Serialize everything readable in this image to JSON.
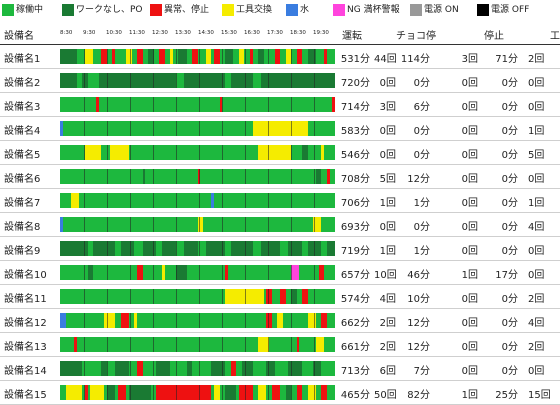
{
  "legend": [
    {
      "label": "稼働中",
      "color": "#1db83e"
    },
    {
      "label": "ワークなし、PO",
      "color": "#1a7a33"
    },
    {
      "label": "異常、停止",
      "color": "#ee1111"
    },
    {
      "label": "工具交換",
      "color": "#f5ec00"
    },
    {
      "label": "水",
      "color": "#3a7de0"
    },
    {
      "label": "NG 満杯警報",
      "color": "#ff44dd"
    },
    {
      "label": "電源 ON",
      "color": "#999999"
    },
    {
      "label": "電源 OFF",
      "color": "#000000"
    }
  ],
  "header": {
    "equipment": "設備名",
    "running": "運転",
    "choko": "チョコ停",
    "stop": "停止",
    "tool": "工"
  },
  "time_ticks": [
    "8:30",
    "9:30",
    "10:30",
    "11:30",
    "12:30",
    "13:30",
    "14:30",
    "15:30",
    "16:30",
    "17:30",
    "18:30",
    "19:30"
  ],
  "machines": [
    {
      "name": "設備名1",
      "run": "531分",
      "choko_count": "44回",
      "choko_time": "114分",
      "stop_count": "3回",
      "stop_time": "71分",
      "tool_count": "2回"
    },
    {
      "name": "設備名2",
      "run": "720分",
      "choko_count": "0回",
      "choko_time": "0分",
      "stop_count": "0回",
      "stop_time": "0分",
      "tool_count": "0回"
    },
    {
      "name": "設備名3",
      "run": "714分",
      "choko_count": "3回",
      "choko_time": "6分",
      "stop_count": "0回",
      "stop_time": "0分",
      "tool_count": "0回"
    },
    {
      "name": "設備名4",
      "run": "583分",
      "choko_count": "0回",
      "choko_time": "0分",
      "stop_count": "0回",
      "stop_time": "0分",
      "tool_count": "1回"
    },
    {
      "name": "設備名5",
      "run": "546分",
      "choko_count": "0回",
      "choko_time": "0分",
      "stop_count": "0回",
      "stop_time": "0分",
      "tool_count": "5回"
    },
    {
      "name": "設備名6",
      "run": "708分",
      "choko_count": "5回",
      "choko_time": "12分",
      "stop_count": "0回",
      "stop_time": "0分",
      "tool_count": "0回"
    },
    {
      "name": "設備名7",
      "run": "706分",
      "choko_count": "1回",
      "choko_time": "1分",
      "stop_count": "0回",
      "stop_time": "0分",
      "tool_count": "1回"
    },
    {
      "name": "設備名8",
      "run": "693分",
      "choko_count": "0回",
      "choko_time": "0分",
      "stop_count": "0回",
      "stop_time": "0分",
      "tool_count": "4回"
    },
    {
      "name": "設備名9",
      "run": "719分",
      "choko_count": "1回",
      "choko_time": "1分",
      "stop_count": "0回",
      "stop_time": "0分",
      "tool_count": "0回"
    },
    {
      "name": "設備名10",
      "run": "657分",
      "choko_count": "10回",
      "choko_time": "46分",
      "stop_count": "1回",
      "stop_time": "17分",
      "tool_count": "0回"
    },
    {
      "name": "設備名11",
      "run": "574分",
      "choko_count": "4回",
      "choko_time": "10分",
      "stop_count": "0回",
      "stop_time": "0分",
      "tool_count": "2回"
    },
    {
      "name": "設備名12",
      "run": "662分",
      "choko_count": "2回",
      "choko_time": "12分",
      "stop_count": "0回",
      "stop_time": "0分",
      "tool_count": "4回"
    },
    {
      "name": "設備名13",
      "run": "661分",
      "choko_count": "2回",
      "choko_time": "12分",
      "stop_count": "0回",
      "stop_time": "0分",
      "tool_count": "2回"
    },
    {
      "name": "設備名14",
      "run": "713分",
      "choko_count": "6回",
      "choko_time": "7分",
      "stop_count": "0回",
      "stop_time": "0分",
      "tool_count": "0回"
    },
    {
      "name": "設備名15",
      "run": "465分",
      "choko_count": "50回",
      "choko_time": "82分",
      "stop_count": "1回",
      "stop_time": "25分",
      "tool_count": "15回"
    }
  ],
  "timeline": [
    [
      {
        "s": 0.0,
        "e": 0.06,
        "c": 1
      },
      {
        "s": 0.09,
        "e": 0.12,
        "c": 3
      },
      {
        "s": 0.15,
        "e": 0.17,
        "c": 2
      },
      {
        "s": 0.19,
        "e": 0.2,
        "c": 2
      },
      {
        "s": 0.24,
        "e": 0.26,
        "c": 3
      },
      {
        "s": 0.28,
        "e": 0.3,
        "c": 2
      },
      {
        "s": 0.32,
        "e": 0.34,
        "c": 1
      },
      {
        "s": 0.36,
        "e": 0.38,
        "c": 2
      },
      {
        "s": 0.4,
        "e": 0.41,
        "c": 3
      },
      {
        "s": 0.43,
        "e": 0.46,
        "c": 1
      },
      {
        "s": 0.48,
        "e": 0.5,
        "c": 2
      },
      {
        "s": 0.53,
        "e": 0.55,
        "c": 3
      },
      {
        "s": 0.56,
        "e": 0.58,
        "c": 2
      },
      {
        "s": 0.6,
        "e": 0.63,
        "c": 1
      },
      {
        "s": 0.65,
        "e": 0.67,
        "c": 3
      },
      {
        "s": 0.69,
        "e": 0.7,
        "c": 2
      },
      {
        "s": 0.72,
        "e": 0.74,
        "c": 1
      },
      {
        "s": 0.78,
        "e": 0.8,
        "c": 2
      },
      {
        "s": 0.82,
        "e": 0.84,
        "c": 3
      },
      {
        "s": 0.86,
        "e": 0.88,
        "c": 2
      },
      {
        "s": 0.9,
        "e": 0.93,
        "c": 1
      },
      {
        "s": 0.96,
        "e": 0.97,
        "c": 2
      }
    ],
    [
      {
        "s": 0.0,
        "e": 0.06,
        "c": 1
      },
      {
        "s": 0.08,
        "e": 0.1,
        "c": 1
      },
      {
        "s": 0.14,
        "e": 0.42,
        "c": 1
      },
      {
        "s": 0.45,
        "e": 0.6,
        "c": 1
      },
      {
        "s": 0.62,
        "e": 0.7,
        "c": 1
      },
      {
        "s": 0.73,
        "e": 1.0,
        "c": 1
      }
    ],
    [
      {
        "s": 0.13,
        "e": 0.14,
        "c": 2
      },
      {
        "s": 0.58,
        "e": 0.59,
        "c": 2
      },
      {
        "s": 0.99,
        "e": 1.0,
        "c": 2
      }
    ],
    [
      {
        "s": 0.0,
        "e": 0.01,
        "c": 4
      },
      {
        "s": 0.7,
        "e": 0.9,
        "c": 3
      }
    ],
    [
      {
        "s": 0.09,
        "e": 0.15,
        "c": 3
      },
      {
        "s": 0.18,
        "e": 0.25,
        "c": 3
      },
      {
        "s": 0.72,
        "e": 0.84,
        "c": 3
      },
      {
        "s": 0.88,
        "e": 0.9,
        "c": 1
      },
      {
        "s": 0.95,
        "e": 0.96,
        "c": 3
      }
    ],
    [
      {
        "s": 0.3,
        "e": 0.31,
        "c": 1
      },
      {
        "s": 0.5,
        "e": 0.51,
        "c": 2
      },
      {
        "s": 0.93,
        "e": 0.95,
        "c": 1
      },
      {
        "s": 0.97,
        "e": 0.98,
        "c": 2
      }
    ],
    [
      {
        "s": 0.04,
        "e": 0.07,
        "c": 3
      },
      {
        "s": 0.55,
        "e": 0.56,
        "c": 4
      }
    ],
    [
      {
        "s": 0.0,
        "e": 0.01,
        "c": 4
      },
      {
        "s": 0.5,
        "e": 0.52,
        "c": 3
      },
      {
        "s": 0.92,
        "e": 0.95,
        "c": 3
      }
    ],
    [
      {
        "s": 0.0,
        "e": 0.1,
        "c": 1
      },
      {
        "s": 0.12,
        "e": 0.2,
        "c": 1
      },
      {
        "s": 0.22,
        "e": 0.27,
        "c": 1
      },
      {
        "s": 0.3,
        "e": 0.35,
        "c": 1
      },
      {
        "s": 0.37,
        "e": 0.42,
        "c": 1
      },
      {
        "s": 0.45,
        "e": 0.5,
        "c": 1
      },
      {
        "s": 0.53,
        "e": 0.6,
        "c": 1
      },
      {
        "s": 0.62,
        "e": 0.7,
        "c": 1
      },
      {
        "s": 0.73,
        "e": 0.8,
        "c": 1
      },
      {
        "s": 0.83,
        "e": 0.88,
        "c": 1
      },
      {
        "s": 0.9,
        "e": 0.95,
        "c": 1
      },
      {
        "s": 0.97,
        "e": 1.0,
        "c": 1
      }
    ],
    [
      {
        "s": 0.1,
        "e": 0.12,
        "c": 1
      },
      {
        "s": 0.28,
        "e": 0.3,
        "c": 2
      },
      {
        "s": 0.37,
        "e": 0.38,
        "c": 3
      },
      {
        "s": 0.42,
        "e": 0.46,
        "c": 1
      },
      {
        "s": 0.6,
        "e": 0.61,
        "c": 2
      },
      {
        "s": 0.84,
        "e": 0.87,
        "c": 5
      },
      {
        "s": 0.94,
        "e": 0.96,
        "c": 2
      }
    ],
    [
      {
        "s": 0.6,
        "e": 0.74,
        "c": 3
      },
      {
        "s": 0.75,
        "e": 0.77,
        "c": 2
      },
      {
        "s": 0.8,
        "e": 0.82,
        "c": 2
      },
      {
        "s": 0.84,
        "e": 0.86,
        "c": 1
      },
      {
        "s": 0.88,
        "e": 0.9,
        "c": 2
      }
    ],
    [
      {
        "s": 0.0,
        "e": 0.02,
        "c": 4
      },
      {
        "s": 0.16,
        "e": 0.2,
        "c": 3
      },
      {
        "s": 0.22,
        "e": 0.25,
        "c": 2
      },
      {
        "s": 0.27,
        "e": 0.28,
        "c": 3
      },
      {
        "s": 0.75,
        "e": 0.77,
        "c": 2
      },
      {
        "s": 0.79,
        "e": 0.81,
        "c": 3
      },
      {
        "s": 0.9,
        "e": 0.93,
        "c": 3
      },
      {
        "s": 0.95,
        "e": 0.97,
        "c": 2
      }
    ],
    [
      {
        "s": 0.05,
        "e": 0.06,
        "c": 2
      },
      {
        "s": 0.72,
        "e": 0.76,
        "c": 3
      },
      {
        "s": 0.86,
        "e": 0.87,
        "c": 2
      },
      {
        "s": 0.93,
        "e": 0.96,
        "c": 3
      }
    ],
    [
      {
        "s": 0.0,
        "e": 0.08,
        "c": 1
      },
      {
        "s": 0.15,
        "e": 0.17,
        "c": 1
      },
      {
        "s": 0.2,
        "e": 0.25,
        "c": 1
      },
      {
        "s": 0.28,
        "e": 0.3,
        "c": 2
      },
      {
        "s": 0.35,
        "e": 0.4,
        "c": 1
      },
      {
        "s": 0.46,
        "e": 0.48,
        "c": 1
      },
      {
        "s": 0.55,
        "e": 0.6,
        "c": 1
      },
      {
        "s": 0.62,
        "e": 0.64,
        "c": 2
      },
      {
        "s": 0.66,
        "e": 0.7,
        "c": 1
      },
      {
        "s": 0.75,
        "e": 0.78,
        "c": 1
      },
      {
        "s": 0.83,
        "e": 0.88,
        "c": 1
      },
      {
        "s": 0.92,
        "e": 0.95,
        "c": 1
      }
    ],
    [
      {
        "s": 0.02,
        "e": 0.08,
        "c": 3
      },
      {
        "s": 0.09,
        "e": 0.1,
        "c": 2
      },
      {
        "s": 0.11,
        "e": 0.16,
        "c": 3
      },
      {
        "s": 0.17,
        "e": 0.2,
        "c": 1
      },
      {
        "s": 0.21,
        "e": 0.24,
        "c": 2
      },
      {
        "s": 0.25,
        "e": 0.33,
        "c": 1
      },
      {
        "s": 0.35,
        "e": 0.55,
        "c": 2
      },
      {
        "s": 0.56,
        "e": 0.58,
        "c": 3
      },
      {
        "s": 0.6,
        "e": 0.64,
        "c": 1
      },
      {
        "s": 0.65,
        "e": 0.7,
        "c": 2
      },
      {
        "s": 0.72,
        "e": 0.75,
        "c": 3
      },
      {
        "s": 0.77,
        "e": 0.8,
        "c": 2
      },
      {
        "s": 0.82,
        "e": 0.84,
        "c": 1
      },
      {
        "s": 0.86,
        "e": 0.88,
        "c": 2
      },
      {
        "s": 0.9,
        "e": 0.93,
        "c": 3
      },
      {
        "s": 0.95,
        "e": 0.97,
        "c": 2
      }
    ]
  ]
}
